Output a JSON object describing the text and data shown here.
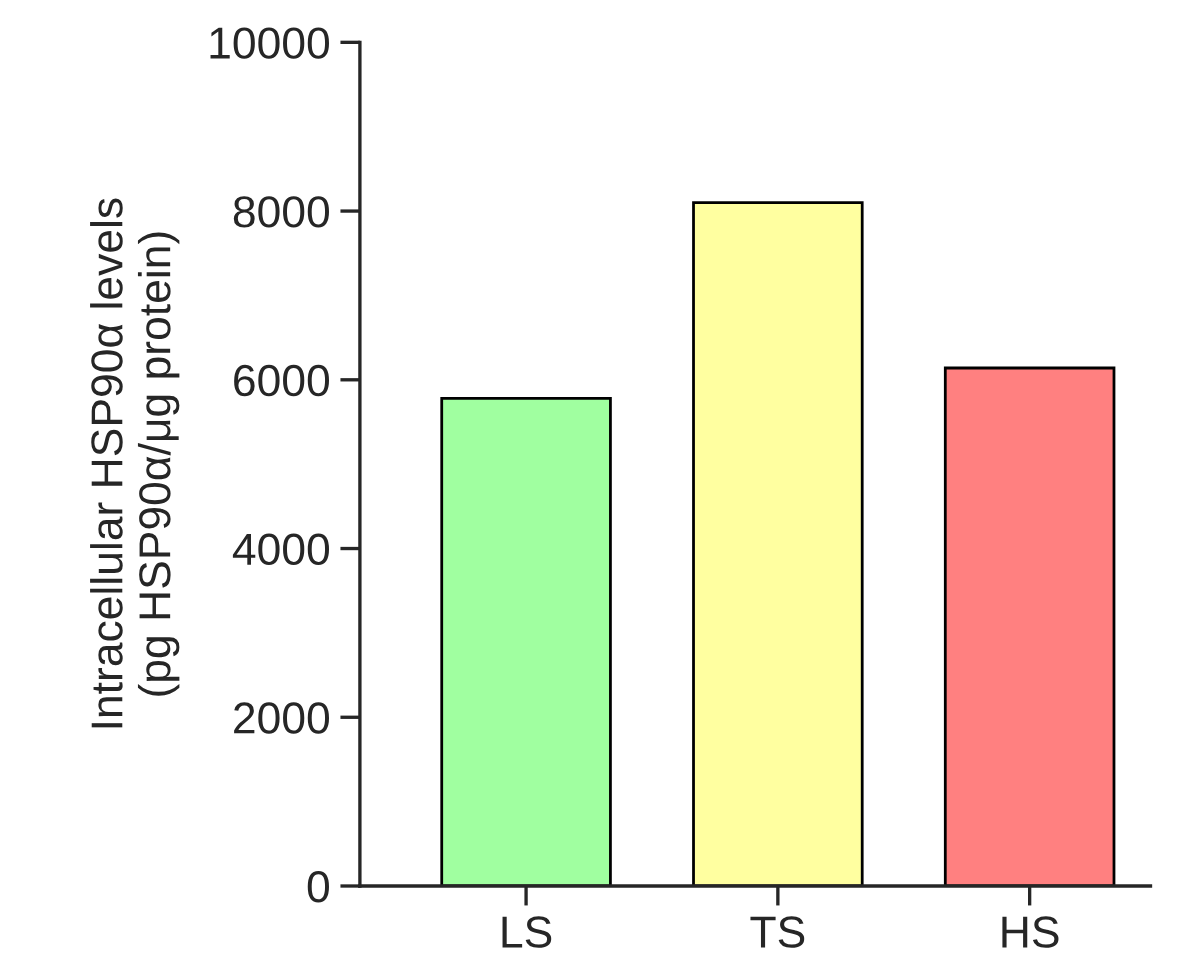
{
  "chart_data": {
    "type": "bar",
    "ylabel": "Intracellular HSP90α levels\n(pg HSP90α/μg protein)",
    "categories": [
      "LS",
      "TS",
      "HS"
    ],
    "values": [
      5780,
      8100,
      6140
    ],
    "colors": [
      "#a0ffa0",
      "#ffffa0",
      "#ff8080"
    ],
    "ylim": [
      0,
      10000
    ],
    "yticks": [
      0,
      2000,
      4000,
      6000,
      8000,
      10000
    ],
    "grid": false,
    "legend": false
  }
}
